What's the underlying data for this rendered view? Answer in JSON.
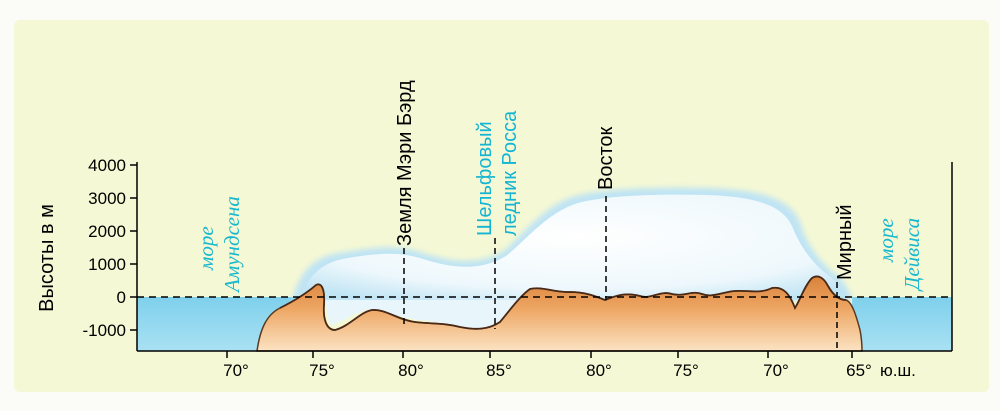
{
  "y_axis": {
    "label": "Высоты в м",
    "ticks": [
      "4000",
      "3000",
      "2000",
      "1000",
      "0",
      "-1000"
    ]
  },
  "x_axis": {
    "ticks": [
      "70°",
      "75°",
      "80°",
      "85°",
      "80°",
      "75°",
      "70°",
      "65°"
    ],
    "unit": "ю.ш."
  },
  "places": {
    "mary_byrd": "Земля Мэри Бэрд",
    "ross_1": "Шельфовый",
    "ross_2": "ледник Росса",
    "vostok": "Восток",
    "mirny": "Мирный"
  },
  "seas": {
    "amundsen_1": "море",
    "amundsen_2": "Амундсена",
    "davis_1": "море",
    "davis_2": "Дейвиса"
  },
  "colors": {
    "background": "#f5f8d4",
    "sea": "#8bd7ee",
    "ice": "#dff2fa",
    "rock": "#e49a52",
    "cyan_text": "#13b4d4"
  }
}
